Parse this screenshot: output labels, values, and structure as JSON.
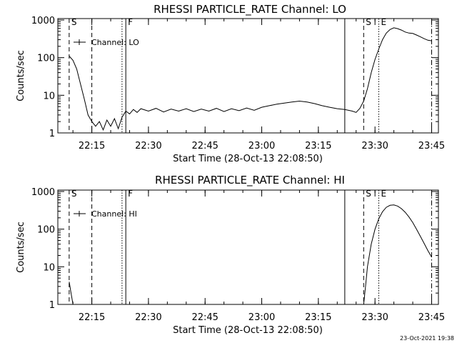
{
  "footer": {
    "timestamp": "23-Oct-2021 19:38"
  },
  "chart_data": [
    {
      "type": "line",
      "title": "RHESSI PARTICLE_RATE Channel: LO",
      "xlabel": "Start Time (28-Oct-13 22:08:50)",
      "ylabel": "Counts/sec",
      "yscale": "log",
      "ylim": [
        1,
        1000
      ],
      "xlim_minutes": [
        22.1,
        23.78
      ],
      "x_ticks": [
        "22:15",
        "22:30",
        "22:45",
        "23:00",
        "23:15",
        "23:30",
        "23:45"
      ],
      "y_ticks": [
        "1",
        "10",
        "100",
        "1000"
      ],
      "legend": {
        "label": "Channel: LO",
        "position": "top-left"
      },
      "markers": [
        {
          "label": "S",
          "time": "22:09",
          "style": "dashed"
        },
        {
          "label": "",
          "time": "22:15",
          "style": "dashed"
        },
        {
          "label": "",
          "time": "22:23",
          "style": "dotted"
        },
        {
          "label": "F",
          "time": "22:24",
          "style": "solid"
        },
        {
          "label": "",
          "time": "23:22",
          "style": "solid"
        },
        {
          "label": "S",
          "time": "23:27",
          "style": "dashed"
        },
        {
          "label": "E",
          "time": "23:31",
          "style": "dotted"
        },
        {
          "label": "",
          "time": "23:45",
          "style": "dashdot"
        }
      ],
      "series": [
        {
          "name": "Channel: LO",
          "points": [
            [
              "22:09",
              110
            ],
            [
              "22:10",
              85
            ],
            [
              "22:11",
              50
            ],
            [
              "22:12",
              20
            ],
            [
              "22:13",
              8
            ],
            [
              "22:14",
              3
            ],
            [
              "22:15",
              2
            ],
            [
              "22:16",
              1.5
            ],
            [
              "22:17",
              2
            ],
            [
              "22:18",
              1.2
            ],
            [
              "22:19",
              2.2
            ],
            [
              "22:20",
              1.5
            ],
            [
              "22:21",
              2.4
            ],
            [
              "22:22",
              1.3
            ],
            [
              "22:23",
              2.6
            ],
            [
              "22:24",
              3.8
            ],
            [
              "22:25",
              3.2
            ],
            [
              "22:26",
              4.2
            ],
            [
              "22:27",
              3.5
            ],
            [
              "22:28",
              4.4
            ],
            [
              "22:30",
              3.8
            ],
            [
              "22:32",
              4.5
            ],
            [
              "22:34",
              3.6
            ],
            [
              "22:36",
              4.3
            ],
            [
              "22:38",
              3.8
            ],
            [
              "22:40",
              4.4
            ],
            [
              "22:42",
              3.7
            ],
            [
              "22:44",
              4.3
            ],
            [
              "22:46",
              3.8
            ],
            [
              "22:48",
              4.5
            ],
            [
              "22:50",
              3.7
            ],
            [
              "22:52",
              4.4
            ],
            [
              "22:54",
              3.9
            ],
            [
              "22:56",
              4.6
            ],
            [
              "22:58",
              4.0
            ],
            [
              "23:00",
              4.8
            ],
            [
              "23:02",
              5.3
            ],
            [
              "23:04",
              5.8
            ],
            [
              "23:06",
              6.2
            ],
            [
              "23:08",
              6.6
            ],
            [
              "23:10",
              7.0
            ],
            [
              "23:12",
              6.6
            ],
            [
              "23:14",
              6.0
            ],
            [
              "23:16",
              5.3
            ],
            [
              "23:18",
              4.8
            ],
            [
              "23:20",
              4.4
            ],
            [
              "23:22",
              4.2
            ],
            [
              "23:24",
              3.8
            ],
            [
              "23:25",
              3.5
            ],
            [
              "23:26",
              4.5
            ],
            [
              "23:27",
              7
            ],
            [
              "23:28",
              15
            ],
            [
              "23:29",
              40
            ],
            [
              "23:30",
              90
            ],
            [
              "23:31",
              170
            ],
            [
              "23:32",
              300
            ],
            [
              "23:33",
              450
            ],
            [
              "23:34",
              560
            ],
            [
              "23:35",
              620
            ],
            [
              "23:36",
              590
            ],
            [
              "23:37",
              540
            ],
            [
              "23:38",
              480
            ],
            [
              "23:39",
              450
            ],
            [
              "23:40",
              440
            ],
            [
              "23:41",
              400
            ],
            [
              "23:42",
              360
            ],
            [
              "23:43",
              320
            ],
            [
              "23:44",
              290
            ],
            [
              "23:45",
              280
            ]
          ]
        }
      ]
    },
    {
      "type": "line",
      "title": "RHESSI PARTICLE_RATE Channel: HI",
      "xlabel": "Start Time (28-Oct-13 22:08:50)",
      "ylabel": "Counts/sec",
      "yscale": "log",
      "ylim": [
        1,
        1000
      ],
      "xlim_minutes": [
        22.1,
        23.78
      ],
      "x_ticks": [
        "22:15",
        "22:30",
        "22:45",
        "23:00",
        "23:15",
        "23:30",
        "23:45"
      ],
      "y_ticks": [
        "1",
        "10",
        "100",
        "1000"
      ],
      "legend": {
        "label": "Channel: HI",
        "position": "top-left"
      },
      "markers": [
        {
          "label": "S",
          "time": "22:09",
          "style": "dashed"
        },
        {
          "label": "",
          "time": "22:15",
          "style": "dashed"
        },
        {
          "label": "",
          "time": "22:23",
          "style": "dotted"
        },
        {
          "label": "F",
          "time": "22:24",
          "style": "solid"
        },
        {
          "label": "",
          "time": "23:22",
          "style": "solid"
        },
        {
          "label": "S",
          "time": "23:27",
          "style": "dashed"
        },
        {
          "label": "E",
          "time": "23:31",
          "style": "dotted"
        },
        {
          "label": "",
          "time": "23:45",
          "style": "dashdot"
        }
      ],
      "series": [
        {
          "name": "Channel: HI",
          "segments": [
            [
              [
                "22:09",
                4
              ],
              [
                "22:09:30",
                2
              ],
              [
                "22:10",
                1
              ]
            ],
            [
              [
                "23:27",
                1
              ],
              [
                "23:27:30",
                3
              ],
              [
                "23:28",
                10
              ],
              [
                "23:29",
                40
              ],
              [
                "23:30",
                100
              ],
              [
                "23:31",
                190
              ],
              [
                "23:32",
                290
              ],
              [
                "23:33",
                380
              ],
              [
                "23:34",
                430
              ],
              [
                "23:35",
                440
              ],
              [
                "23:36",
                410
              ],
              [
                "23:37",
                350
              ],
              [
                "23:38",
                280
              ],
              [
                "23:39",
                210
              ],
              [
                "23:40",
                150
              ],
              [
                "23:41",
                100
              ],
              [
                "23:42",
                65
              ],
              [
                "23:43",
                42
              ],
              [
                "23:44",
                27
              ],
              [
                "23:45",
                18
              ]
            ]
          ]
        }
      ]
    }
  ]
}
